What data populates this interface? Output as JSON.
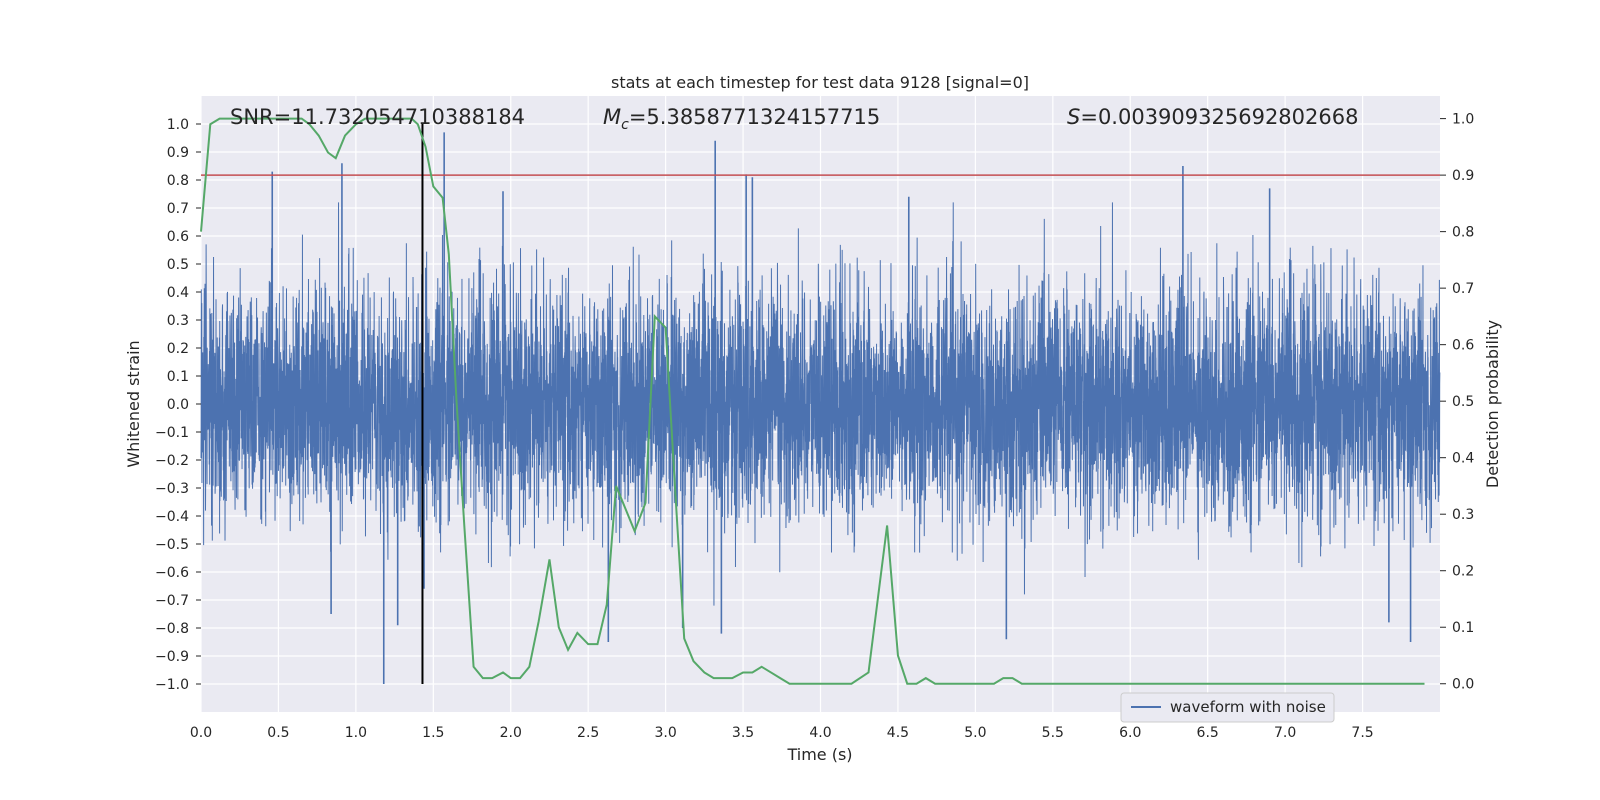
{
  "chart_data": {
    "type": "line",
    "title": "stats at each timestep for test data 9128 [signal=0]",
    "xlabel": "Time (s)",
    "ylabel": "Whitened strain",
    "y2label": "Detection probability",
    "xlim": [
      0.0,
      8.0
    ],
    "ylim": [
      -1.1,
      1.1
    ],
    "y2lim": [
      -0.05,
      1.04
    ],
    "x_ticks": [
      "0.0",
      "0.5",
      "1.0",
      "1.5",
      "2.0",
      "2.5",
      "3.0",
      "3.5",
      "4.0",
      "4.5",
      "5.0",
      "5.5",
      "6.0",
      "6.5",
      "7.0",
      "7.5"
    ],
    "x_tick_values": [
      0,
      0.5,
      1,
      1.5,
      2,
      2.5,
      3,
      3.5,
      4,
      4.5,
      5,
      5.5,
      6,
      6.5,
      7,
      7.5
    ],
    "y_ticks": [
      "1.0",
      "0.9",
      "0.8",
      "0.7",
      "0.6",
      "0.5",
      "0.4",
      "0.3",
      "0.2",
      "0.1",
      "0.0",
      "−0.1",
      "−0.2",
      "−0.3",
      "−0.4",
      "−0.5",
      "−0.6",
      "−0.7",
      "−0.8",
      "−0.9",
      "−1.0"
    ],
    "y_tick_values": [
      1.0,
      0.9,
      0.8,
      0.7,
      0.6,
      0.5,
      0.4,
      0.3,
      0.2,
      0.1,
      0.0,
      -0.1,
      -0.2,
      -0.3,
      -0.4,
      -0.5,
      -0.6,
      -0.7,
      -0.8,
      -0.9,
      -1.0
    ],
    "y2_ticks": [
      "1.0",
      "0.9",
      "0.8",
      "0.7",
      "0.6",
      "0.5",
      "0.4",
      "0.3",
      "0.2",
      "0.1",
      "0.0"
    ],
    "y2_tick_values": [
      1.0,
      0.9,
      0.8,
      0.7,
      0.6,
      0.5,
      0.4,
      0.3,
      0.2,
      0.1,
      0.0
    ],
    "annotations": {
      "snr": "SNR=11.732054710388184",
      "mc_symbol": "M",
      "mc_sub": "c",
      "mc_value": "=5.3858771324157715",
      "s_symbol": "S",
      "s_value": "=0.003909325692802668"
    },
    "legend": {
      "label": "waveform with noise",
      "placement": "bottom-right"
    },
    "threshold_line": {
      "probability": 0.9,
      "color": "#c44e52"
    },
    "vertical_marker": {
      "x": 1.43,
      "color": "#000000"
    },
    "waveform": {
      "name": "waveform with noise",
      "color": "#4c72b0",
      "n_samples": 8000,
      "noise_sigma": 0.2,
      "spikes": [
        {
          "x": 0.46,
          "y": 0.83
        },
        {
          "x": 0.91,
          "y": 0.86
        },
        {
          "x": 1.18,
          "y": -1.0
        },
        {
          "x": 1.27,
          "y": -0.79
        },
        {
          "x": 1.57,
          "y": 0.97
        },
        {
          "x": 1.44,
          "y": -0.66
        },
        {
          "x": 3.32,
          "y": 0.94
        },
        {
          "x": 3.36,
          "y": -0.82
        },
        {
          "x": 3.52,
          "y": 0.82
        },
        {
          "x": 3.56,
          "y": 0.81
        },
        {
          "x": 2.63,
          "y": -0.85
        },
        {
          "x": 3.11,
          "y": -0.8
        },
        {
          "x": 5.2,
          "y": -0.84
        },
        {
          "x": 6.34,
          "y": 0.85
        },
        {
          "x": 7.81,
          "y": -0.85
        },
        {
          "x": 7.67,
          "y": -0.78
        },
        {
          "x": 1.95,
          "y": 0.76
        },
        {
          "x": 4.57,
          "y": 0.74
        },
        {
          "x": 6.9,
          "y": 0.77
        },
        {
          "x": 0.84,
          "y": -0.75
        }
      ]
    },
    "probability": {
      "name": "detection probability",
      "color": "#55a868",
      "x": [
        0.0,
        0.06,
        0.12,
        0.2,
        0.3,
        0.4,
        0.5,
        0.6,
        0.65,
        0.7,
        0.76,
        0.82,
        0.87,
        0.93,
        1.0,
        1.06,
        1.12,
        1.2,
        1.3,
        1.36,
        1.4,
        1.45,
        1.5,
        1.56,
        1.6,
        1.65,
        1.7,
        1.76,
        1.82,
        1.88,
        1.95,
        2.0,
        2.06,
        2.12,
        2.18,
        2.25,
        2.31,
        2.37,
        2.43,
        2.5,
        2.56,
        2.62,
        2.68,
        2.74,
        2.8,
        2.87,
        2.93,
        3.0,
        3.06,
        3.12,
        3.18,
        3.25,
        3.31,
        3.37,
        3.43,
        3.5,
        3.56,
        3.62,
        3.68,
        3.74,
        3.8,
        3.9,
        4.0,
        4.2,
        4.31,
        4.37,
        4.43,
        4.5,
        4.56,
        4.62,
        4.68,
        4.74,
        4.8,
        5.0,
        5.12,
        5.18,
        5.24,
        5.3,
        5.4,
        5.6,
        5.8,
        6.0,
        6.3,
        6.6,
        6.9,
        7.2,
        7.5,
        7.7,
        7.9
      ],
      "y": [
        0.8,
        0.99,
        1.0,
        1.0,
        1.0,
        1.0,
        1.0,
        1.0,
        1.0,
        0.99,
        0.97,
        0.94,
        0.93,
        0.97,
        0.99,
        1.0,
        1.0,
        1.0,
        1.0,
        1.0,
        0.99,
        0.95,
        0.88,
        0.86,
        0.76,
        0.5,
        0.28,
        0.03,
        0.01,
        0.01,
        0.02,
        0.01,
        0.01,
        0.03,
        0.11,
        0.22,
        0.1,
        0.06,
        0.09,
        0.07,
        0.07,
        0.14,
        0.35,
        0.31,
        0.27,
        0.32,
        0.65,
        0.63,
        0.35,
        0.08,
        0.04,
        0.02,
        0.01,
        0.01,
        0.01,
        0.02,
        0.02,
        0.03,
        0.02,
        0.01,
        0.0,
        0.0,
        0.0,
        0.0,
        0.02,
        0.15,
        0.28,
        0.05,
        0.0,
        0.0,
        0.01,
        0.0,
        0.0,
        0.0,
        0.0,
        0.01,
        0.01,
        0.0,
        0.0,
        0.0,
        0.0,
        0.0,
        0.0,
        0.0,
        0.0,
        0.0,
        0.0,
        0.0,
        0.0
      ]
    }
  }
}
